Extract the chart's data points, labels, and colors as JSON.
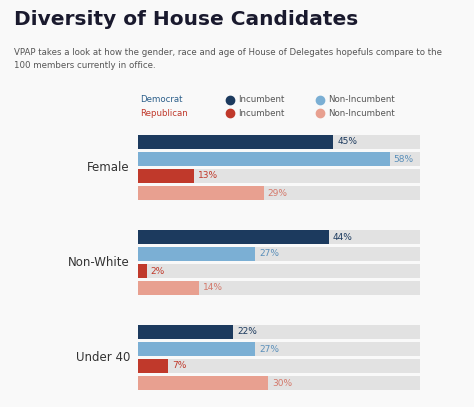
{
  "title": "Diversity of House Candidates",
  "subtitle": "VPAP takes a look at how the gender, race and age of House of Delegates hopefuls compare to the\n100 members currently in office.",
  "background_color": "#f9f9f9",
  "bar_bg_color": "#e2e2e2",
  "categories": [
    "Female",
    "Non-White",
    "Under 40"
  ],
  "bars": {
    "Female": [
      {
        "value": 45,
        "color": "#1c3a5e"
      },
      {
        "value": 58,
        "color": "#7bafd4"
      },
      {
        "value": 13,
        "color": "#c0392b"
      },
      {
        "value": 29,
        "color": "#e8a090"
      }
    ],
    "Non-White": [
      {
        "value": 44,
        "color": "#1c3a5e"
      },
      {
        "value": 27,
        "color": "#7bafd4"
      },
      {
        "value": 2,
        "color": "#c0392b"
      },
      {
        "value": 14,
        "color": "#e8a090"
      }
    ],
    "Under 40": [
      {
        "value": 22,
        "color": "#1c3a5e"
      },
      {
        "value": 27,
        "color": "#7bafd4"
      },
      {
        "value": 7,
        "color": "#c0392b"
      },
      {
        "value": 30,
        "color": "#e8a090"
      }
    ]
  },
  "pct_label_colors": {
    "Female": [
      "#1c3a5e",
      "#5a8fba",
      "#c0392b",
      "#d4786a"
    ],
    "Non-White": [
      "#1c3a5e",
      "#5a8fba",
      "#c0392b",
      "#d4786a"
    ],
    "Under 40": [
      "#1c3a5e",
      "#5a8fba",
      "#c0392b",
      "#d4786a"
    ]
  },
  "max_pct": 65,
  "legend_dem_color": "#2c5f8a",
  "legend_rep_color": "#c0392b",
  "legend_text_color": "#555555",
  "cat_label_color": "#333333",
  "title_color": "#1a1a2e",
  "subtitle_color": "#555555"
}
